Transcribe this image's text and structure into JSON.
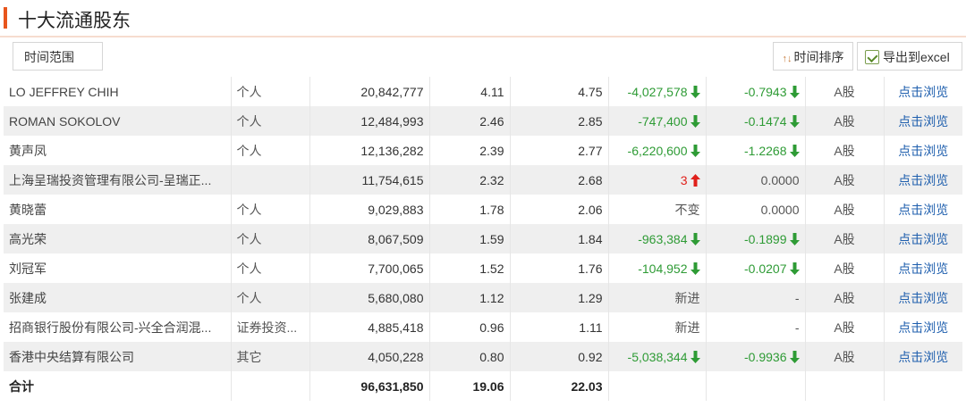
{
  "title": "十大流通股东",
  "toolbar": {
    "range_label": "时间范围",
    "sort_label": "时间排序",
    "export_label": "导出到excel"
  },
  "rows": [
    {
      "name": "LO JEFFREY CHIH",
      "type": "个人",
      "shares": "20,842,777",
      "pct1": "4.11",
      "pct2": "4.75",
      "change": "-4,027,578",
      "change_dir": "down",
      "ratio": "-0.7943",
      "ratio_dir": "down",
      "cls": "A股",
      "link": "点击浏览"
    },
    {
      "name": "ROMAN SOKOLOV",
      "type": "个人",
      "shares": "12,484,993",
      "pct1": "2.46",
      "pct2": "2.85",
      "change": "-747,400",
      "change_dir": "down",
      "ratio": "-0.1474",
      "ratio_dir": "down",
      "cls": "A股",
      "link": "点击浏览"
    },
    {
      "name": "黄声凤",
      "type": "个人",
      "shares": "12,136,282",
      "pct1": "2.39",
      "pct2": "2.77",
      "change": "-6,220,600",
      "change_dir": "down",
      "ratio": "-1.2268",
      "ratio_dir": "down",
      "cls": "A股",
      "link": "点击浏览"
    },
    {
      "name": "上海呈瑞投资管理有限公司-呈瑞正...",
      "type": "",
      "shares": "11,754,615",
      "pct1": "2.32",
      "pct2": "2.68",
      "change": "3",
      "change_dir": "up",
      "ratio": "0.0000",
      "ratio_dir": "none",
      "cls": "A股",
      "link": "点击浏览"
    },
    {
      "name": "黄晓蕾",
      "type": "个人",
      "shares": "9,029,883",
      "pct1": "1.78",
      "pct2": "2.06",
      "change": "不变",
      "change_dir": "text",
      "ratio": "0.0000",
      "ratio_dir": "none",
      "cls": "A股",
      "link": "点击浏览"
    },
    {
      "name": "高光荣",
      "type": "个人",
      "shares": "8,067,509",
      "pct1": "1.59",
      "pct2": "1.84",
      "change": "-963,384",
      "change_dir": "down",
      "ratio": "-0.1899",
      "ratio_dir": "down",
      "cls": "A股",
      "link": "点击浏览"
    },
    {
      "name": "刘冠军",
      "type": "个人",
      "shares": "7,700,065",
      "pct1": "1.52",
      "pct2": "1.76",
      "change": "-104,952",
      "change_dir": "down",
      "ratio": "-0.0207",
      "ratio_dir": "down",
      "cls": "A股",
      "link": "点击浏览"
    },
    {
      "name": "张建成",
      "type": "个人",
      "shares": "5,680,080",
      "pct1": "1.12",
      "pct2": "1.29",
      "change": "新进",
      "change_dir": "text",
      "ratio": "-",
      "ratio_dir": "none",
      "cls": "A股",
      "link": "点击浏览"
    },
    {
      "name": "招商银行股份有限公司-兴全合润混...",
      "type": "证券投资...",
      "shares": "4,885,418",
      "pct1": "0.96",
      "pct2": "1.11",
      "change": "新进",
      "change_dir": "text",
      "ratio": "-",
      "ratio_dir": "none",
      "cls": "A股",
      "link": "点击浏览"
    },
    {
      "name": "香港中央结算有限公司",
      "type": "其它",
      "shares": "4,050,228",
      "pct1": "0.80",
      "pct2": "0.92",
      "change": "-5,038,344",
      "change_dir": "down",
      "ratio": "-0.9936",
      "ratio_dir": "down",
      "cls": "A股",
      "link": "点击浏览"
    }
  ],
  "total": {
    "label": "合计",
    "shares": "96,631,850",
    "pct1": "19.06",
    "pct2": "22.03"
  },
  "colors": {
    "accent": "#e8551c",
    "down": "#2e9b35",
    "up": "#e0201b",
    "link": "#1f5fae"
  },
  "icons": {
    "down": "arrow-down-icon",
    "up": "arrow-up-icon",
    "sort": "sort-icon",
    "export": "excel-icon"
  }
}
